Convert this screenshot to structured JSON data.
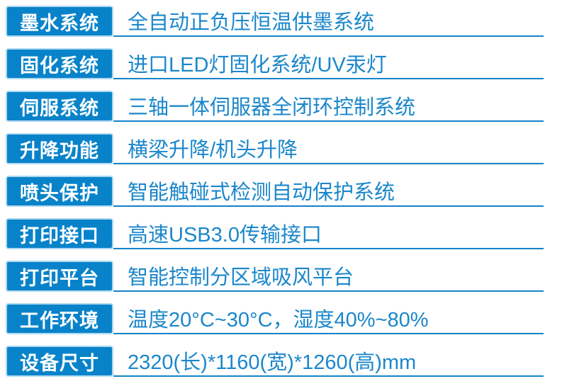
{
  "colors": {
    "label_bg": "#0883ca",
    "label_border": "#aed9f0",
    "label_text": "#ffffff",
    "value_text": "#1b87cb",
    "underline": "#1583c8",
    "page_bg": "#ffffff"
  },
  "table": {
    "rows": [
      {
        "label": "墨水系统",
        "value": "全自动正负压恒温供墨系统"
      },
      {
        "label": "固化系统",
        "value": "进口LED灯固化系统/UV汞灯"
      },
      {
        "label": "伺服系统",
        "value": "三轴一体伺服器全闭环控制系统"
      },
      {
        "label": "升降功能",
        "value": "横梁升降/机头升降"
      },
      {
        "label": "喷头保护",
        "value": "智能触碰式检测自动保护系统"
      },
      {
        "label": "打印接口",
        "value": "高速USB3.0传输接口"
      },
      {
        "label": "打印平台",
        "value": "智能控制分区域吸风平台"
      },
      {
        "label": "工作环境",
        "value": "温度20°C~30°C，湿度40%~80%"
      },
      {
        "label": "设备尺寸",
        "value": "2320(长)*1160(宽)*1260(高)mm"
      }
    ]
  }
}
